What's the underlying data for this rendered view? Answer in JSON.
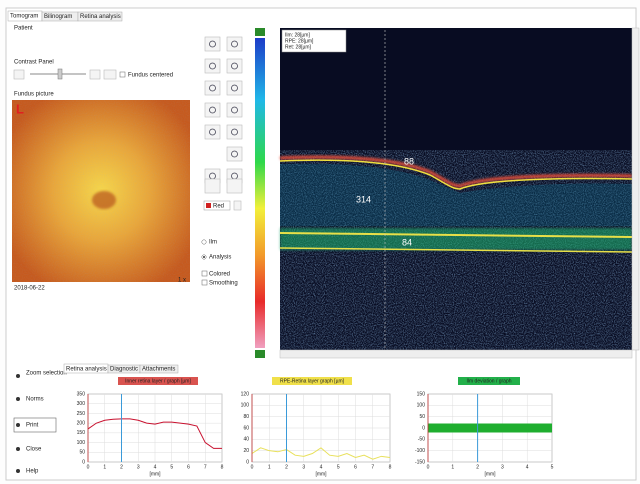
{
  "ui": {
    "tabs": [
      "Tomogram",
      "Bilinogram",
      "Retina analysis"
    ],
    "patient": "Patient",
    "contrast": "Contrast Panel",
    "fundus_centered": "Fundus centered",
    "fundus_label": "Fundus picture",
    "eye": "L",
    "fundus_date": "2018-06-22",
    "fundus_zoom": "1 x",
    "color_select": "Red",
    "options": [
      "Ilm",
      "Analysis",
      "Colored",
      "Smoothing"
    ],
    "oct_legend": [
      "Ilm: 28[µm]",
      "RPE: 28[µm]",
      "Ret: 28[µm]"
    ],
    "oct_labels": [
      "88",
      "314",
      "84"
    ],
    "left_buttons": [
      "Zoom selection",
      "Norms",
      "Print",
      "Close",
      "Help"
    ],
    "subtabs": [
      "Retina analysis",
      "Diagnostic",
      "Attachments"
    ]
  },
  "chart_data": [
    {
      "type": "line",
      "title": "Inner retina layer / graph [µm]",
      "title_color": "#d9534f",
      "x": [
        0,
        0.5,
        1,
        1.5,
        2,
        2.5,
        3,
        3.5,
        4,
        4.5,
        5,
        5.5,
        6,
        6.5,
        7,
        7.5,
        8
      ],
      "series": [
        {
          "color": "#c8102e",
          "values": [
            170,
            200,
            215,
            220,
            222,
            222,
            215,
            200,
            195,
            205,
            205,
            200,
            195,
            185,
            100,
            70,
            70
          ]
        }
      ],
      "xlim": [
        0,
        8
      ],
      "xticks": [
        0,
        1,
        2,
        3,
        4,
        5,
        6,
        7,
        8
      ],
      "xlabel": "[mm]",
      "ylim": [
        0,
        350
      ],
      "yticks": [
        0,
        50,
        100,
        150,
        200,
        250,
        300,
        350
      ],
      "cursor": 2,
      "grid": true
    },
    {
      "type": "line",
      "title": "RPE-Retina layer graph [µm]",
      "title_color": "#f0e04a",
      "x": [
        0,
        0.5,
        1,
        1.5,
        2,
        2.5,
        3,
        3.5,
        4,
        4.5,
        5,
        5.5,
        6,
        6.5,
        7,
        7.5,
        8
      ],
      "series": [
        {
          "color": "#e8e05a",
          "values": [
            15,
            25,
            20,
            18,
            22,
            12,
            10,
            15,
            25,
            12,
            10,
            15,
            8,
            12,
            5,
            10,
            8
          ]
        }
      ],
      "xlim": [
        0,
        8
      ],
      "xticks": [
        0,
        1,
        2,
        3,
        4,
        5,
        6,
        7,
        8
      ],
      "xlabel": "[mm]",
      "ylim": [
        0,
        120
      ],
      "yticks": [
        0,
        20,
        40,
        60,
        80,
        100,
        120
      ],
      "cursor": 2,
      "grid": true
    },
    {
      "type": "band",
      "title": "Ilm deviation / graph",
      "title_color": "#22b04a",
      "x": [
        0,
        5
      ],
      "upper": [
        20,
        20
      ],
      "lower": [
        -20,
        -20
      ],
      "color": "#1fae2f",
      "xlim": [
        0,
        5
      ],
      "xticks": [
        0,
        1,
        2,
        3,
        4,
        5
      ],
      "xlabel": "[mm]",
      "ylim": [
        -150,
        150
      ],
      "yticks": [
        -150,
        -100,
        -50,
        0,
        50,
        100,
        150
      ],
      "cursor": 2,
      "grid": true
    }
  ]
}
